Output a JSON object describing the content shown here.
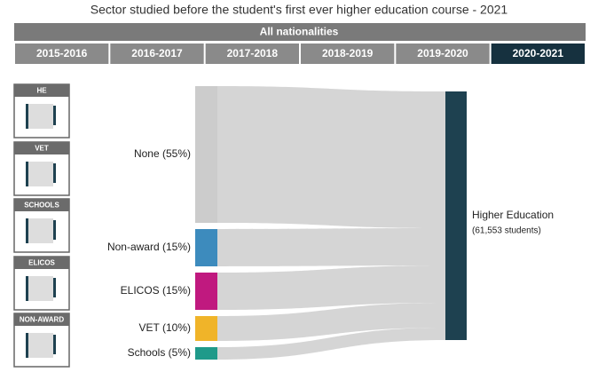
{
  "title": "Sector studied before the student's first ever higher education course - 2021",
  "filter": "All nationalities",
  "tabs": [
    {
      "label": "2015-2016",
      "selected": false
    },
    {
      "label": "2016-2017",
      "selected": false
    },
    {
      "label": "2017-2018",
      "selected": false
    },
    {
      "label": "2018-2019",
      "selected": false
    },
    {
      "label": "2019-2020",
      "selected": false
    },
    {
      "label": "2020-2021",
      "selected": true
    }
  ],
  "thumbnails": [
    "HE",
    "VET",
    "SCHOOLS",
    "ELICOS",
    "NON-AWARD"
  ],
  "chart_data": {
    "type": "sankey",
    "values": [
      55,
      15,
      15,
      10,
      5
    ],
    "value_labels": [
      "None (55%)",
      "Non-award (15%)",
      "ELICOS (15%)",
      "VET (10%)",
      "Schools (5%)"
    ],
    "colors": [
      "#cccccc",
      "#3d8bbd",
      "#c0197f",
      "#f0b429",
      "#1f9a8a"
    ],
    "target": "Higher Education",
    "target_note": "(61,553 students)",
    "target_color": "#1e4150",
    "flow_color": "#d3d3d3"
  }
}
